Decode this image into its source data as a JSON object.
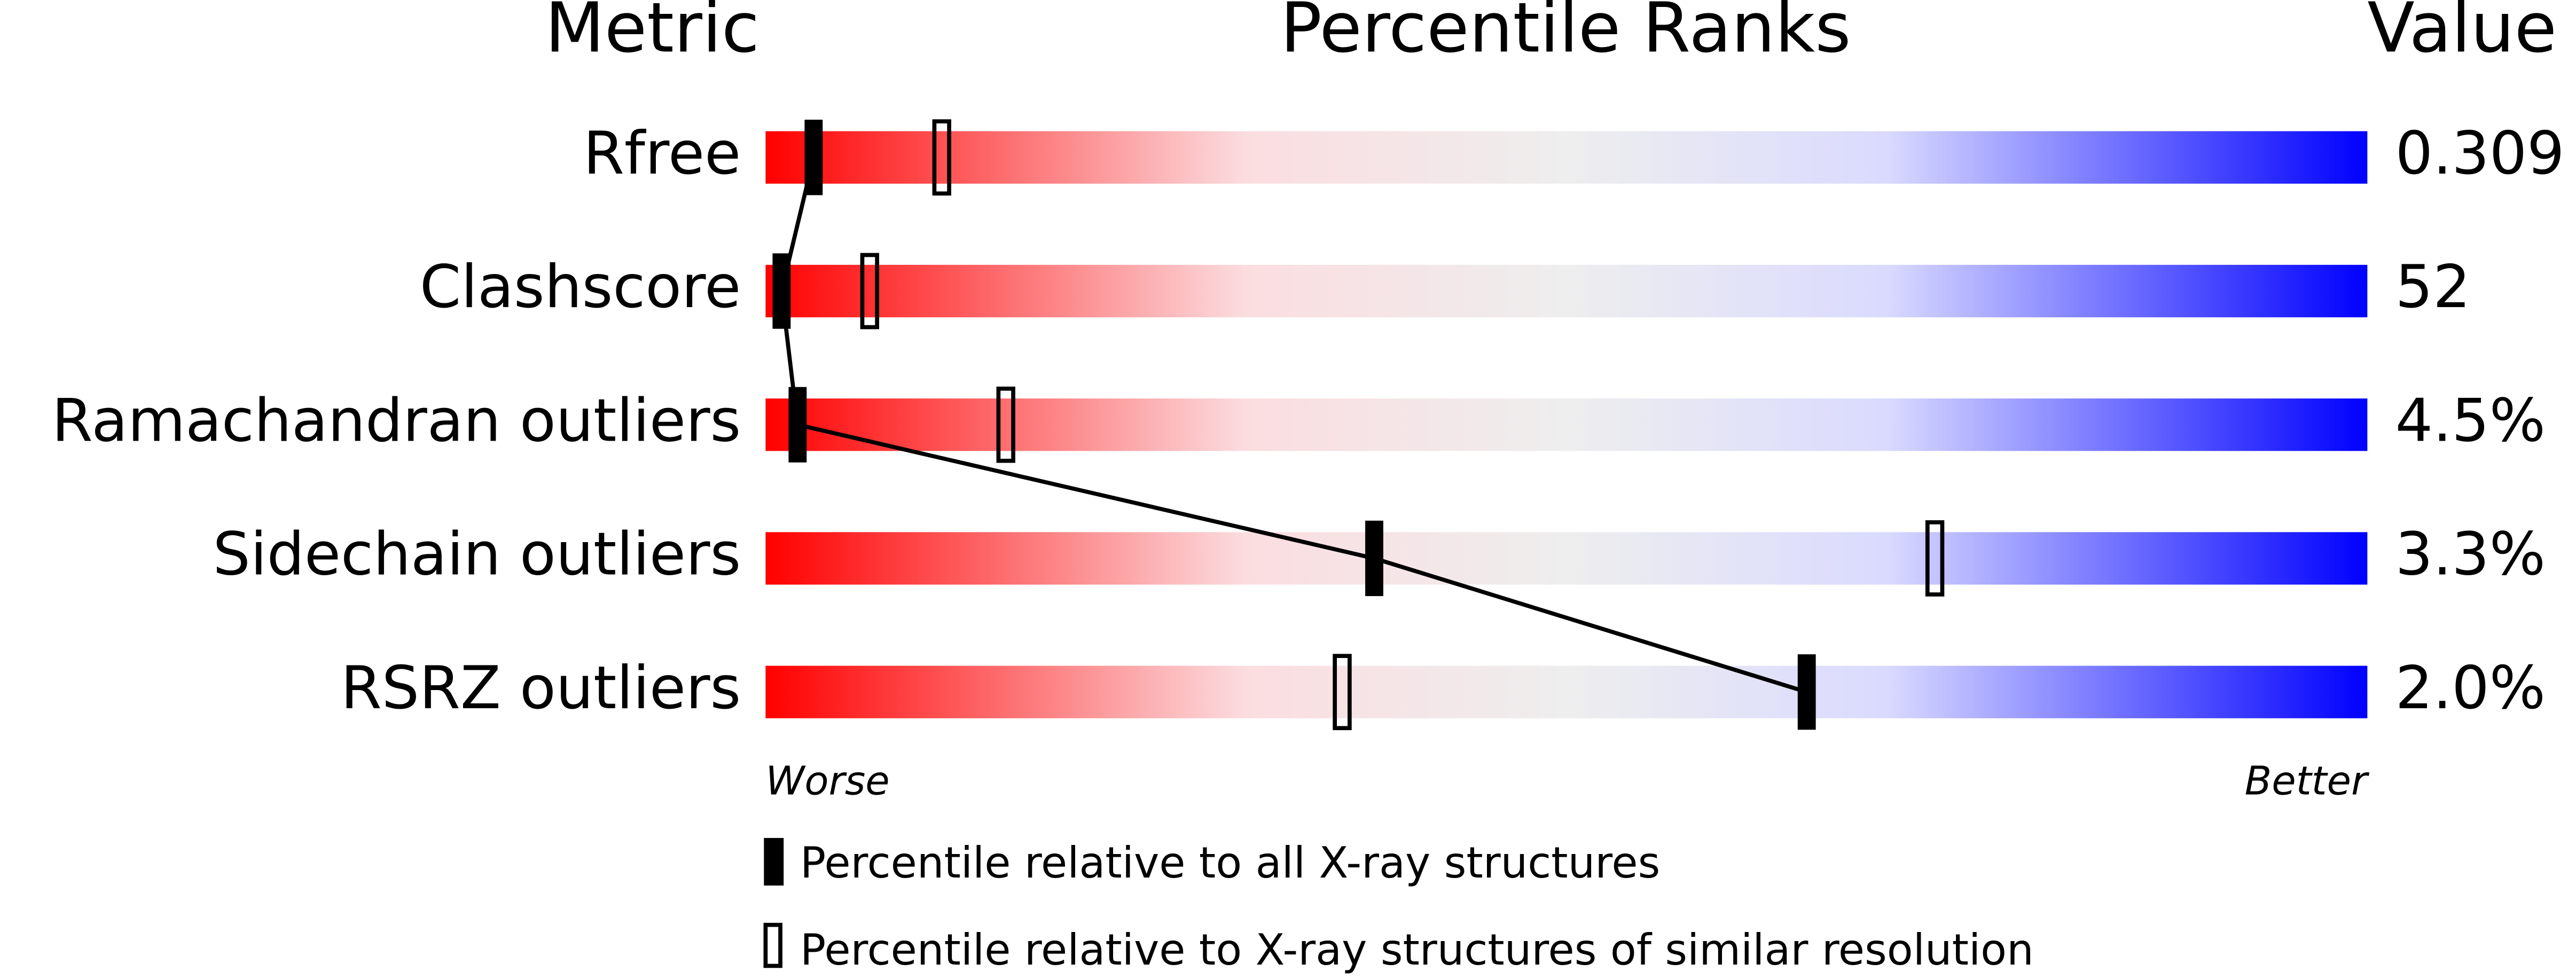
{
  "chart_data": {
    "type": "percentile",
    "headers": {
      "metric": "Metric",
      "ranks": "Percentile Ranks",
      "value": "Value"
    },
    "categories": [
      "Rfree",
      "Clashscore",
      "Ramachandran outliers",
      "Sidechain outliers",
      "RSRZ outliers"
    ],
    "metric_values": [
      "0.309",
      "52",
      "4.5%",
      "3.3%",
      "2.0%"
    ],
    "xlim": [
      0,
      100
    ],
    "scale_labels": {
      "worse": "Worse",
      "better": "Better"
    },
    "series": [
      {
        "name": "Percentile relative to all X-ray structures",
        "color": "#000000",
        "filled": true,
        "values": [
          3,
          1,
          2,
          38,
          65
        ]
      },
      {
        "name": "Percentile relative to X-ray structures of similar resolution",
        "color": "#000000",
        "filled": false,
        "values": [
          11,
          6.5,
          15,
          73,
          36
        ]
      }
    ]
  }
}
